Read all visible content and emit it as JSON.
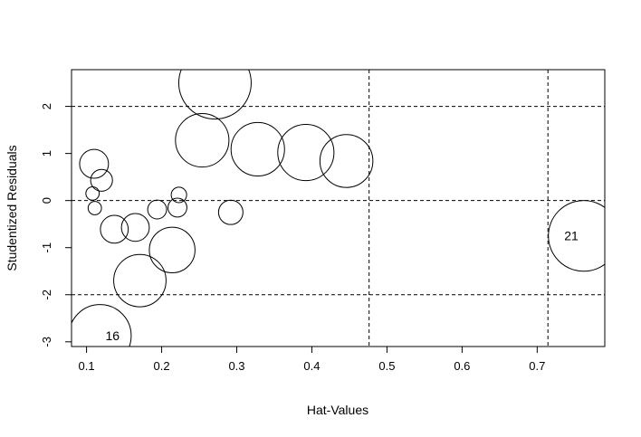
{
  "chart_data": {
    "type": "scatter",
    "title": "",
    "xlabel": "Hat-Values",
    "ylabel": "Studentized Residuals",
    "xlim": [
      0.08,
      0.79
    ],
    "ylim": [
      -3.1,
      2.78
    ],
    "x_ticks": [
      0.1,
      0.2,
      0.3,
      0.4,
      0.5,
      0.6,
      0.7
    ],
    "x_tick_labels": [
      "0.1",
      "0.2",
      "0.3",
      "0.4",
      "0.5",
      "0.6",
      "0.7"
    ],
    "y_ticks": [
      -3,
      -2,
      -1,
      0,
      1,
      2
    ],
    "y_tick_labels": [
      "-3",
      "-2",
      "-1",
      "0",
      "1",
      "2"
    ],
    "reference_lines": {
      "horizontal": [
        -2,
        0,
        2
      ],
      "vertical": [
        0.4762,
        0.7143
      ],
      "style": "dashed"
    },
    "grid": false,
    "legend": "none",
    "marker": "open-circle",
    "bubble_size_variable": "Cook's distance (circle area)",
    "points": [
      {
        "x": 0.11,
        "y": 0.78,
        "size": 0.07
      },
      {
        "x": 0.108,
        "y": 0.15,
        "size": 0.015
      },
      {
        "x": 0.111,
        "y": -0.16,
        "size": 0.015
      },
      {
        "x": 0.12,
        "y": 0.43,
        "size": 0.04
      },
      {
        "x": 0.137,
        "y": -0.61,
        "size": 0.065
      },
      {
        "x": 0.165,
        "y": -0.57,
        "size": 0.065
      },
      {
        "x": 0.194,
        "y": -0.19,
        "size": 0.03
      },
      {
        "x": 0.221,
        "y": -0.15,
        "size": 0.03
      },
      {
        "x": 0.223,
        "y": 0.12,
        "size": 0.02
      },
      {
        "x": 0.292,
        "y": -0.25,
        "size": 0.05
      },
      {
        "x": 0.214,
        "y": -1.05,
        "size": 0.175
      },
      {
        "x": 0.171,
        "y": -1.7,
        "size": 0.23
      },
      {
        "x": 0.118,
        "y": -2.87,
        "size": 0.325,
        "label": "16"
      },
      {
        "x": 0.254,
        "y": 1.28,
        "size": 0.24
      },
      {
        "x": 0.271,
        "y": 2.5,
        "size": 0.44
      },
      {
        "x": 0.328,
        "y": 1.09,
        "size": 0.24
      },
      {
        "x": 0.392,
        "y": 1.02,
        "size": 0.265
      },
      {
        "x": 0.446,
        "y": 0.84,
        "size": 0.235
      },
      {
        "x": 0.762,
        "y": -0.75,
        "size": 0.42,
        "label": "21"
      }
    ]
  }
}
